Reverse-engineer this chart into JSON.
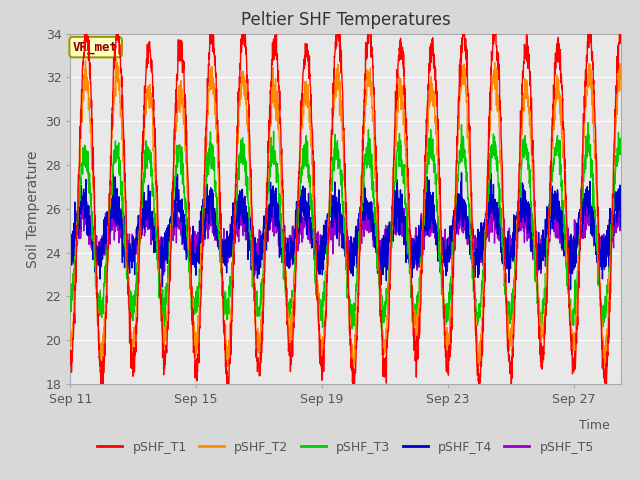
{
  "title": "Peltier SHF Temperatures",
  "xlabel": "Time",
  "ylabel": "Soil Temperature",
  "ylim": [
    18,
    34
  ],
  "yticks": [
    18,
    20,
    22,
    24,
    26,
    28,
    30,
    32,
    34
  ],
  "xtick_labels": [
    "Sep 11",
    "Sep 15",
    "Sep 19",
    "Sep 23",
    "Sep 27"
  ],
  "xtick_positions": [
    0,
    4,
    8,
    12,
    16
  ],
  "days": 17.5,
  "annotation_text": "VR_met",
  "annotation_color": "#8B0000",
  "annotation_bg": "#FFFFC0",
  "annotation_edge": "#999900",
  "plot_bg_color": "#E8E8E8",
  "fig_bg_color": "#D8D8D8",
  "legend_entries": [
    "pSHF_T1",
    "pSHF_T2",
    "pSHF_T3",
    "pSHF_T4",
    "pSHF_T5"
  ],
  "line_colors": [
    "#FF0000",
    "#FF8C00",
    "#00CC00",
    "#0000CC",
    "#9900CC"
  ],
  "line_width": 1.0,
  "grid_color": "#FFFFFF",
  "tick_color": "#555555",
  "spine_color": "#AAAAAA"
}
